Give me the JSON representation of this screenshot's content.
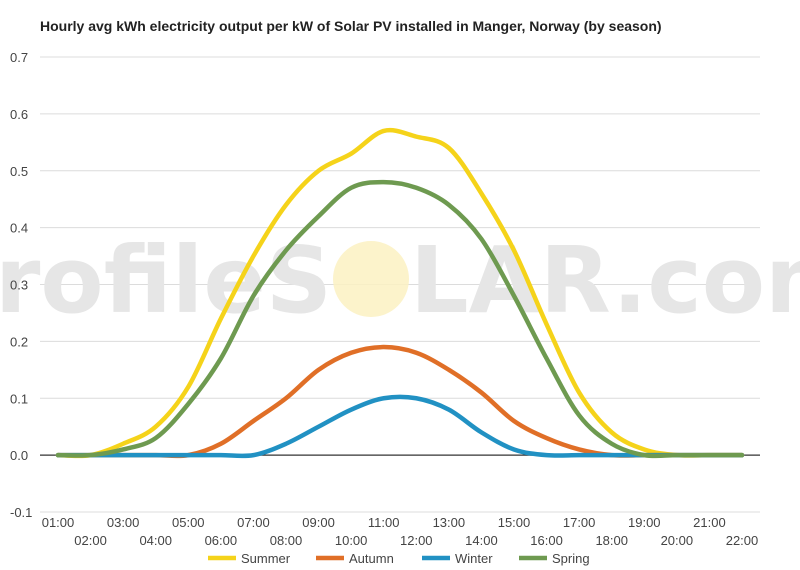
{
  "watermark": {
    "left": "profileS",
    "right": "LAR.com"
  },
  "chart_data": {
    "type": "line",
    "title": "Hourly avg kWh electricity output per kW of Solar PV installed in Manger, Norway (by season)",
    "xlabel": "",
    "ylabel": "",
    "ylim": [
      -0.1,
      0.7
    ],
    "yticks": [
      "0.7",
      "0.6",
      "0.5",
      "0.4",
      "0.3",
      "0.2",
      "0.1",
      "0.0",
      "-0.1"
    ],
    "grid": true,
    "legend_position": "bottom",
    "categories": [
      "01:00",
      "02:00",
      "03:00",
      "04:00",
      "05:00",
      "06:00",
      "07:00",
      "08:00",
      "09:00",
      "10:00",
      "11:00",
      "12:00",
      "13:00",
      "14:00",
      "15:00",
      "16:00",
      "17:00",
      "18:00",
      "19:00",
      "20:00",
      "21:00",
      "22:00"
    ],
    "series": [
      {
        "name": "Summer",
        "color": "#f5d31a",
        "values": [
          0.0,
          0.0,
          0.02,
          0.05,
          0.12,
          0.24,
          0.35,
          0.44,
          0.5,
          0.53,
          0.57,
          0.56,
          0.54,
          0.46,
          0.36,
          0.23,
          0.11,
          0.04,
          0.01,
          0.0,
          0.0,
          0.0
        ]
      },
      {
        "name": "Autumn",
        "color": "#e06f27",
        "values": [
          0.0,
          0.0,
          0.0,
          0.0,
          0.0,
          0.02,
          0.06,
          0.1,
          0.15,
          0.18,
          0.19,
          0.18,
          0.15,
          0.11,
          0.06,
          0.03,
          0.01,
          0.0,
          0.0,
          0.0,
          0.0,
          0.0
        ]
      },
      {
        "name": "Winter",
        "color": "#2191c3",
        "values": [
          0.0,
          0.0,
          0.0,
          0.0,
          0.0,
          0.0,
          0.0,
          0.02,
          0.05,
          0.08,
          0.1,
          0.1,
          0.08,
          0.04,
          0.01,
          0.0,
          0.0,
          0.0,
          0.0,
          0.0,
          0.0,
          0.0
        ]
      },
      {
        "name": "Spring",
        "color": "#6e9a50",
        "values": [
          0.0,
          0.0,
          0.01,
          0.03,
          0.09,
          0.17,
          0.28,
          0.36,
          0.42,
          0.47,
          0.48,
          0.47,
          0.44,
          0.38,
          0.28,
          0.17,
          0.07,
          0.02,
          0.0,
          0.0,
          0.0,
          0.0
        ]
      }
    ]
  }
}
